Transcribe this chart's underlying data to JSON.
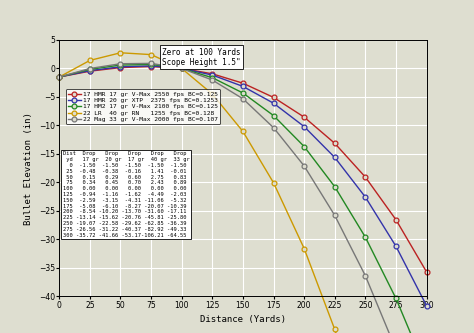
{
  "distances": [
    0,
    25,
    50,
    75,
    100,
    125,
    150,
    175,
    200,
    225,
    250,
    275,
    300
  ],
  "series": [
    {
      "label": "17 HMR 17 gr V-Max 2550 fps BC=0.125",
      "color": "#bb2222",
      "values": [
        -1.5,
        -0.48,
        0.15,
        0.34,
        0.0,
        -0.94,
        -2.59,
        -5.08,
        -8.54,
        -13.14,
        -19.07,
        -26.56,
        -35.72
      ]
    },
    {
      "label": "17 HMR 20 gr XTP  2375 fps BC=0.1253",
      "color": "#3333aa",
      "values": [
        -1.5,
        -0.38,
        0.29,
        0.45,
        0.0,
        -1.16,
        -3.15,
        -6.1,
        -10.2,
        -15.62,
        -22.58,
        -31.22,
        -41.66
      ]
    },
    {
      "label": "17 HM2 17 gr V-Max 2100 fps BC=0.125",
      "color": "#228822",
      "values": [
        -1.5,
        -0.16,
        0.6,
        0.7,
        0.0,
        -1.62,
        -4.31,
        -8.27,
        -13.7,
        -20.76,
        -29.62,
        -40.37,
        -53.17
      ]
    },
    {
      "label": "22 LR  40 gr RN   1255 fps BC=0.128",
      "color": "#cc9900",
      "values": [
        -1.5,
        1.41,
        2.75,
        2.43,
        0.0,
        -4.49,
        -11.06,
        -20.07,
        -31.6,
        -45.81,
        -62.85,
        -82.92,
        -106.21
      ]
    },
    {
      "label": "22 Mag 33 gr V-Max 2000 fps BC=0.107",
      "color": "#777777",
      "values": [
        -1.5,
        -0.01,
        0.83,
        0.89,
        0.0,
        -2.03,
        -5.32,
        -10.39,
        -17.11,
        -25.8,
        -36.39,
        -49.33,
        -64.55
      ]
    }
  ],
  "xlabel": "Distance (Yards)",
  "ylabel": "Bullet Elevation (in)",
  "xlim": [
    0,
    300
  ],
  "ylim": [
    -40,
    5
  ],
  "xticks": [
    0,
    25,
    50,
    75,
    100,
    125,
    150,
    175,
    200,
    225,
    250,
    275,
    300
  ],
  "yticks": [
    5,
    0,
    -5,
    -10,
    -15,
    -20,
    -25,
    -30,
    -35,
    -40
  ],
  "annotation_text": "Zero at 100 Yards\nScope Height 1.5\"",
  "table_header": "Dist  Drop   Drop   Drop   Drop   Drop",
  "table_header2": " yd   17 gr  20 gr  17 gr  40 gr  33 gr",
  "table_rows": [
    "  0  -1.50  -1.50  -1.50  -1.50  -1.50",
    " 25  -0.48  -0.38  -0.16   1.41  -0.01",
    " 50   0.15   0.29   0.60   2.75   0.83",
    " 75   0.34   0.45   0.70   2.43   0.89",
    "100   0.00   0.00   0.00   0.00   0.00",
    "125  -0.94  -1.16  -1.62  -4.49  -2.03",
    "150  -2.59  -3.15  -4.31 -11.06  -5.32",
    "175  -5.08  -6.10  -8.27 -20.07 -10.39",
    "200  -8.54 -10.20 -13.70 -31.60 -17.11",
    "225 -13.14 -15.62 -20.76 -45.81 -25.80",
    "250 -19.07 -22.58 -29.62 -62.85 -36.39",
    "275 -26.56 -31.22 -40.37 -82.92 -49.33",
    "300 -35.72 -41.66 -53.17-106.21 -64.55"
  ],
  "bg_color": "#deded0",
  "grid_color": "#ffffff",
  "marker": "o",
  "marker_size": 3.5
}
